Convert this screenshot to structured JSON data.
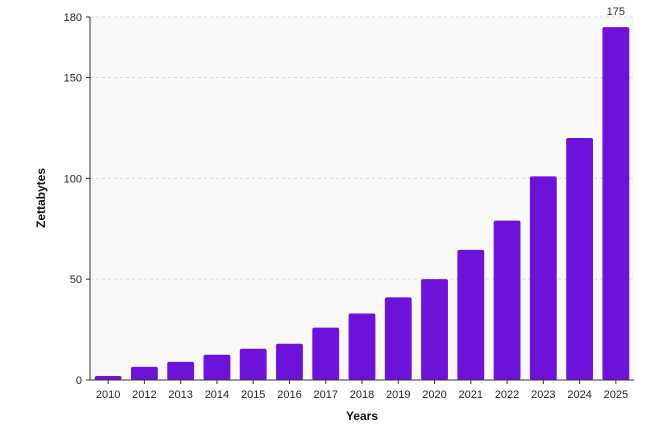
{
  "chart_data": {
    "type": "bar",
    "title": "",
    "xlabel": "Years",
    "ylabel": "Zettabytes",
    "categories": [
      "2010",
      "2012",
      "2013",
      "2014",
      "2015",
      "2016",
      "2017",
      "2018",
      "2019",
      "2020",
      "2021",
      "2022",
      "2023",
      "2024",
      "2025"
    ],
    "values": [
      2,
      6.5,
      9,
      12.5,
      15.5,
      18,
      26,
      33,
      41,
      50,
      64.5,
      79,
      101,
      120,
      175
    ],
    "ylim": [
      0,
      180
    ],
    "yticks": [
      0,
      50,
      100,
      150,
      180
    ],
    "data_labels": [
      {
        "category": "2025",
        "text": "175"
      }
    ],
    "grid": true,
    "legend": "none",
    "colors": {
      "bar": "#6c12d9",
      "plot_background": "#f8f8f8",
      "grid": "#d9d9d9",
      "axis": "#333333"
    }
  }
}
